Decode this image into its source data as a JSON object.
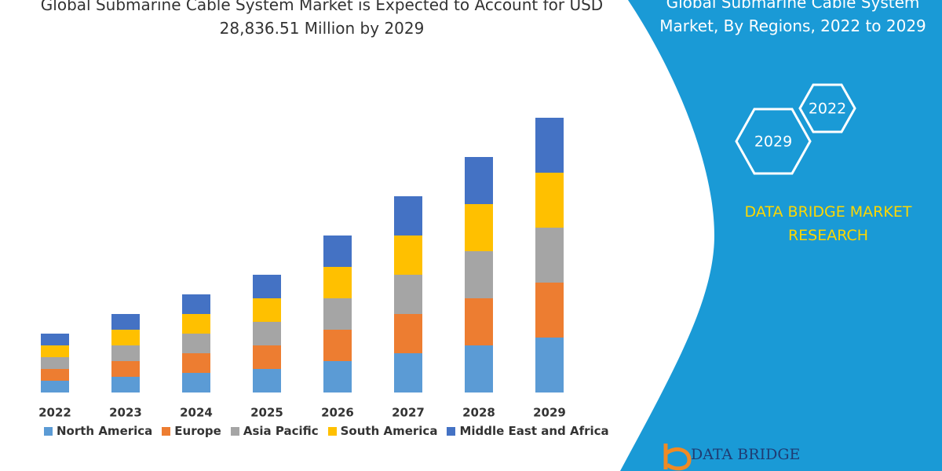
{
  "chart_data": {
    "type": "bar",
    "stacked": true,
    "title": "Global Submarine Cable System Market is Expected to Account for USD 28,836.51 Million by 2029",
    "categories": [
      "2022",
      "2023",
      "2024",
      "2025",
      "2026",
      "2027",
      "2028",
      "2029"
    ],
    "series": [
      {
        "name": "North America",
        "color": "#5b9bd5",
        "values": [
          15,
          20,
          25,
          30,
          40,
          50,
          60,
          70
        ]
      },
      {
        "name": "Europe",
        "color": "#ed7d31",
        "values": [
          15,
          20,
          25,
          30,
          40,
          50,
          60,
          70
        ]
      },
      {
        "name": "Asia Pacific",
        "color": "#a5a5a5",
        "values": [
          15,
          20,
          25,
          30,
          40,
          50,
          60,
          70
        ]
      },
      {
        "name": "South America",
        "color": "#ffc000",
        "values": [
          15,
          20,
          25,
          30,
          40,
          50,
          60,
          70
        ]
      },
      {
        "name": "Middle East and Africa",
        "color": "#4472c4",
        "values": [
          15,
          20,
          25,
          30,
          40,
          50,
          60,
          70
        ]
      }
    ],
    "ylim": [
      0,
      350
    ],
    "grid": false,
    "legend": "bottom"
  },
  "panel": {
    "title": "Global Submarine Cable System Market, By Regions, 2022 to 2029",
    "hexagons": [
      "2022",
      "2029"
    ],
    "brand": "DATA BRIDGE MARKET RESEARCH",
    "logo": "DATA BRIDGE"
  }
}
